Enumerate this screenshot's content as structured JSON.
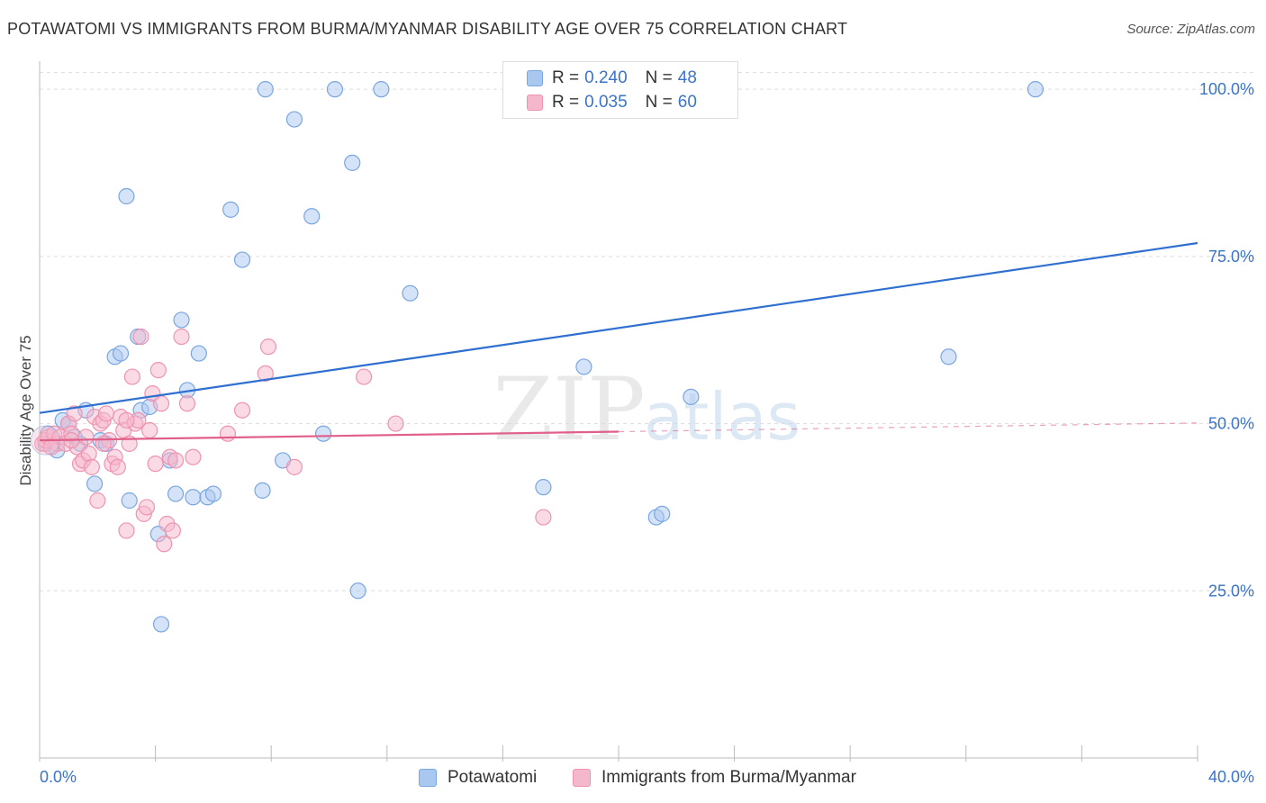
{
  "title": "POTAWATOMI VS IMMIGRANTS FROM BURMA/MYANMAR DISABILITY AGE OVER 75 CORRELATION CHART",
  "source": "Source: ZipAtlas.com",
  "watermark": {
    "zip": "ZIP",
    "atlas": "atlas"
  },
  "legend": {
    "r_label": "R =",
    "n_label": "N =",
    "series": [
      {
        "name": "Potawatomi",
        "r": "0.240",
        "n": "48"
      },
      {
        "name": "Immigrants from Burma/Myanmar",
        "r": "0.035",
        "n": "60"
      }
    ]
  },
  "colors": {
    "blue_fill": "#a9c8f0",
    "blue_stroke": "#7aa6e0",
    "blue_line": "#2e6fd0",
    "pink_fill": "#f5b7cb",
    "pink_stroke": "#ee93b0",
    "pink_line": "#e0608a",
    "axis_text": "#3a74c9",
    "grid": "#dddddd"
  },
  "chart_data": {
    "type": "scatter",
    "title": "POTAWATOMI VS IMMIGRANTS FROM BURMA/MYANMAR DISABILITY AGE OVER 75 CORRELATION CHART",
    "xlabel": "",
    "ylabel": "Disability Age Over 75",
    "xlim": [
      0,
      40
    ],
    "ylim": [
      0,
      105
    ],
    "x_tick_labels": [
      {
        "value": 0,
        "label": "0.0%"
      },
      {
        "value": 40,
        "label": "40.0%"
      }
    ],
    "y_tick_labels": [
      {
        "value": 25,
        "label": "25.0%"
      },
      {
        "value": 50,
        "label": "50.0%"
      },
      {
        "value": 75,
        "label": "75.0%"
      },
      {
        "value": 100,
        "label": "100.0%"
      }
    ],
    "x_minor_ticks": [
      0,
      4,
      8,
      12,
      16,
      20,
      24,
      28,
      32,
      36,
      40
    ],
    "y_gridlines": [
      25,
      50,
      75,
      100
    ],
    "series": [
      {
        "name": "Potawatomi",
        "color": "#a9c8f0",
        "points": [
          [
            0.2,
            47.0
          ],
          [
            0.3,
            48.5
          ],
          [
            0.6,
            46.0
          ],
          [
            0.8,
            50.5
          ],
          [
            1.0,
            50.0
          ],
          [
            1.2,
            48.0
          ],
          [
            1.4,
            47.0
          ],
          [
            1.6,
            52.0
          ],
          [
            1.9,
            41.0
          ],
          [
            2.1,
            47.5
          ],
          [
            2.3,
            47.0
          ],
          [
            2.6,
            60.0
          ],
          [
            2.8,
            60.5
          ],
          [
            3.0,
            84.0
          ],
          [
            3.1,
            38.5
          ],
          [
            3.4,
            63.0
          ],
          [
            3.5,
            52.0
          ],
          [
            3.8,
            52.5
          ],
          [
            4.1,
            33.5
          ],
          [
            4.2,
            20.0
          ],
          [
            4.5,
            44.5
          ],
          [
            4.7,
            39.5
          ],
          [
            4.9,
            65.5
          ],
          [
            5.1,
            55.0
          ],
          [
            5.3,
            39.0
          ],
          [
            5.5,
            60.5
          ],
          [
            5.8,
            39.0
          ],
          [
            6.0,
            39.5
          ],
          [
            6.6,
            82.0
          ],
          [
            7.0,
            74.5
          ],
          [
            7.8,
            100.0
          ],
          [
            7.7,
            40.0
          ],
          [
            8.4,
            44.5
          ],
          [
            8.8,
            95.5
          ],
          [
            9.4,
            81.0
          ],
          [
            9.8,
            48.5
          ],
          [
            10.2,
            100.0
          ],
          [
            10.8,
            89.0
          ],
          [
            11.0,
            25.0
          ],
          [
            11.8,
            100.0
          ],
          [
            12.8,
            69.5
          ],
          [
            17.4,
            40.5
          ],
          [
            18.8,
            58.5
          ],
          [
            21.3,
            36.0
          ],
          [
            21.5,
            36.5
          ],
          [
            22.5,
            54.0
          ],
          [
            31.4,
            60.0
          ],
          [
            34.4,
            100.0
          ]
        ],
        "trend": {
          "x": [
            0,
            40
          ],
          "y": [
            51.6,
            77.0
          ]
        }
      },
      {
        "name": "Immigrants from Burma/Myanmar",
        "color": "#f5b7cb",
        "points": [
          [
            0.1,
            47.0
          ],
          [
            0.2,
            47.5
          ],
          [
            0.3,
            48.0
          ],
          [
            0.5,
            48.5
          ],
          [
            0.6,
            47.0
          ],
          [
            0.7,
            48.0
          ],
          [
            0.9,
            47.0
          ],
          [
            1.0,
            50.0
          ],
          [
            1.1,
            48.5
          ],
          [
            1.2,
            51.5
          ],
          [
            1.3,
            46.5
          ],
          [
            1.4,
            44.0
          ],
          [
            1.5,
            44.5
          ],
          [
            1.7,
            45.5
          ],
          [
            1.8,
            43.5
          ],
          [
            1.9,
            51.0
          ],
          [
            2.0,
            38.5
          ],
          [
            2.1,
            50.0
          ],
          [
            2.2,
            50.5
          ],
          [
            2.3,
            51.5
          ],
          [
            2.4,
            47.5
          ],
          [
            2.5,
            44.0
          ],
          [
            2.6,
            45.0
          ],
          [
            2.7,
            43.5
          ],
          [
            2.8,
            51.0
          ],
          [
            2.9,
            49.0
          ],
          [
            3.0,
            34.0
          ],
          [
            3.1,
            47.0
          ],
          [
            3.2,
            57.0
          ],
          [
            3.3,
            50.0
          ],
          [
            3.4,
            50.5
          ],
          [
            3.5,
            63.0
          ],
          [
            3.6,
            36.5
          ],
          [
            3.7,
            37.5
          ],
          [
            3.8,
            49.0
          ],
          [
            3.9,
            54.5
          ],
          [
            4.0,
            44.0
          ],
          [
            4.1,
            58.0
          ],
          [
            4.2,
            53.0
          ],
          [
            4.3,
            32.0
          ],
          [
            4.4,
            35.0
          ],
          [
            4.5,
            45.0
          ],
          [
            4.6,
            34.0
          ],
          [
            4.7,
            44.5
          ],
          [
            4.9,
            63.0
          ],
          [
            5.1,
            53.0
          ],
          [
            5.3,
            45.0
          ],
          [
            6.5,
            48.5
          ],
          [
            7.0,
            52.0
          ],
          [
            7.8,
            57.5
          ],
          [
            7.9,
            61.5
          ],
          [
            8.8,
            43.5
          ],
          [
            11.2,
            57.0
          ],
          [
            12.3,
            50.0
          ],
          [
            17.4,
            36.0
          ],
          [
            1.6,
            48.0
          ],
          [
            2.2,
            47.0
          ],
          [
            3.0,
            50.5
          ],
          [
            1.1,
            47.5
          ],
          [
            0.4,
            46.5
          ]
        ],
        "trend": {
          "x": [
            0,
            20
          ],
          "y": [
            47.5,
            48.8
          ],
          "dashed_extension": {
            "x": [
              20,
              40
            ],
            "y": [
              48.8,
              50.1
            ]
          }
        }
      }
    ]
  }
}
